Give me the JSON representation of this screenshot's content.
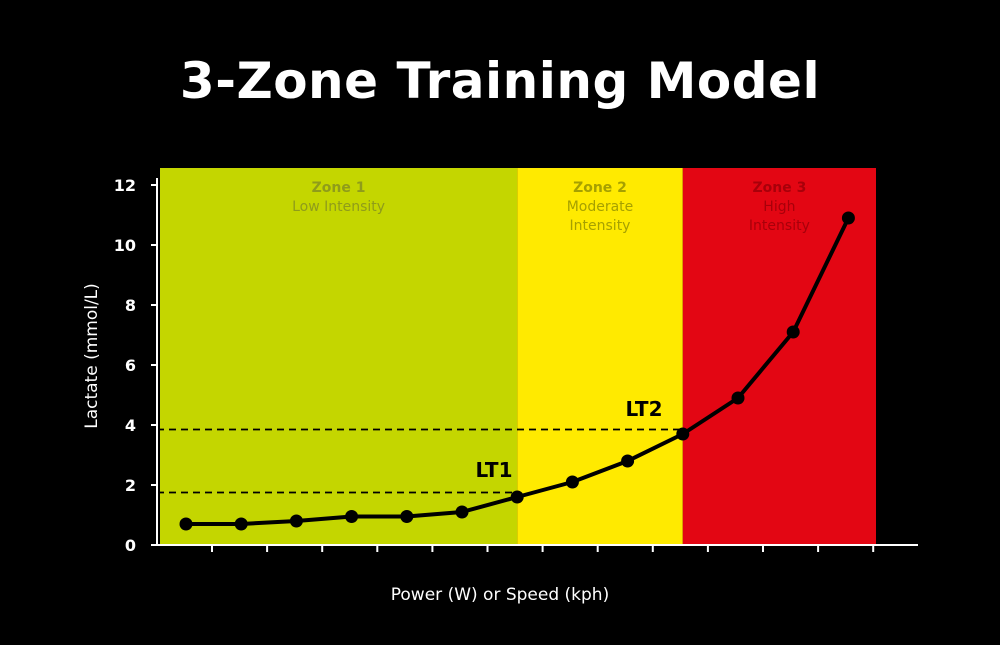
{
  "title": "3-Zone Training Model",
  "chart_data": {
    "type": "line",
    "xlabel": "Power (W) or Speed (kph)",
    "ylabel": "Lactate (mmol/L)",
    "ylim": [
      0,
      12
    ],
    "yticks": [
      0,
      2,
      4,
      6,
      8,
      10,
      12
    ],
    "x_ticks_labeled": false,
    "grid": false,
    "series": [
      {
        "values": [
          0.7,
          0.7,
          0.8,
          0.95,
          0.95,
          1.1,
          1.6,
          2.1,
          2.8,
          3.7,
          4.9,
          7.1,
          10.9
        ]
      }
    ],
    "zones": [
      {
        "name": "Zone 1",
        "description": [
          "Low Intensity"
        ],
        "color": "#c4d600",
        "text_color": "#8f9c1a",
        "from_point": -0.58,
        "to_point": 6
      },
      {
        "name": "Zone 2",
        "description": [
          "Moderate",
          "Intensity"
        ],
        "color": "#ffea00",
        "text_color": "#a6a000",
        "from_point": 6,
        "to_point": 9
      },
      {
        "name": "Zone 3",
        "description": [
          "High",
          "Intensity"
        ],
        "color": "#e30613",
        "text_color": "#a8000a",
        "from_point": 9,
        "to_point": 12.5
      }
    ],
    "thresholds": [
      {
        "label": "LT1",
        "value": 1.75
      },
      {
        "label": "LT2",
        "value": 3.85
      }
    ],
    "line_color": "#000000"
  }
}
